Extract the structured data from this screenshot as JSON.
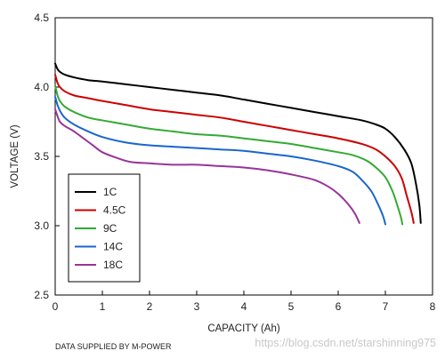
{
  "chart_data": {
    "type": "line",
    "xlabel": "CAPACITY (Ah)",
    "ylabel": "VOLTAGE (V)",
    "xlim": [
      0,
      8
    ],
    "ylim": [
      2.5,
      4.5
    ],
    "xticks": [
      "0",
      "1",
      "2",
      "3",
      "4",
      "5",
      "6",
      "7",
      "8"
    ],
    "yticks": [
      "4.5",
      "4.0",
      "3.5",
      "3.0",
      "2.5"
    ],
    "legend_position": "bottom-left",
    "grid": false,
    "footnote": "DATA SUPPLIED BY M-POWER",
    "watermark": "https://blog.csdn.net/starshinning975",
    "series": [
      {
        "name": "1C",
        "color": "#000000",
        "points": [
          [
            0,
            4.17
          ],
          [
            0.05,
            4.13
          ],
          [
            0.1,
            4.11
          ],
          [
            0.2,
            4.09
          ],
          [
            0.4,
            4.07
          ],
          [
            0.7,
            4.05
          ],
          [
            1.0,
            4.04
          ],
          [
            1.5,
            4.02
          ],
          [
            2.0,
            4.0
          ],
          [
            2.5,
            3.98
          ],
          [
            3.0,
            3.96
          ],
          [
            3.5,
            3.94
          ],
          [
            4.0,
            3.91
          ],
          [
            4.5,
            3.88
          ],
          [
            5.0,
            3.85
          ],
          [
            5.5,
            3.82
          ],
          [
            6.0,
            3.79
          ],
          [
            6.5,
            3.76
          ],
          [
            6.8,
            3.73
          ],
          [
            7.0,
            3.7
          ],
          [
            7.2,
            3.64
          ],
          [
            7.4,
            3.55
          ],
          [
            7.55,
            3.45
          ],
          [
            7.65,
            3.3
          ],
          [
            7.72,
            3.15
          ],
          [
            7.75,
            3.02
          ]
        ]
      },
      {
        "name": "4.5C",
        "color": "#cc0000",
        "points": [
          [
            0,
            4.09
          ],
          [
            0.05,
            4.03
          ],
          [
            0.1,
            4.0
          ],
          [
            0.2,
            3.97
          ],
          [
            0.4,
            3.94
          ],
          [
            0.7,
            3.92
          ],
          [
            1.0,
            3.9
          ],
          [
            1.5,
            3.87
          ],
          [
            2.0,
            3.84
          ],
          [
            2.5,
            3.82
          ],
          [
            3.0,
            3.8
          ],
          [
            3.5,
            3.78
          ],
          [
            4.0,
            3.75
          ],
          [
            4.5,
            3.72
          ],
          [
            5.0,
            3.69
          ],
          [
            5.5,
            3.66
          ],
          [
            6.0,
            3.63
          ],
          [
            6.5,
            3.59
          ],
          [
            6.8,
            3.55
          ],
          [
            7.0,
            3.5
          ],
          [
            7.2,
            3.43
          ],
          [
            7.35,
            3.34
          ],
          [
            7.45,
            3.22
          ],
          [
            7.55,
            3.1
          ],
          [
            7.6,
            3.02
          ]
        ]
      },
      {
        "name": "9C",
        "color": "#33aa33",
        "points": [
          [
            0,
            4.01
          ],
          [
            0.05,
            3.94
          ],
          [
            0.1,
            3.9
          ],
          [
            0.2,
            3.86
          ],
          [
            0.4,
            3.82
          ],
          [
            0.7,
            3.78
          ],
          [
            1.0,
            3.76
          ],
          [
            1.5,
            3.73
          ],
          [
            2.0,
            3.7
          ],
          [
            2.5,
            3.68
          ],
          [
            3.0,
            3.66
          ],
          [
            3.5,
            3.65
          ],
          [
            4.0,
            3.63
          ],
          [
            4.5,
            3.61
          ],
          [
            5.0,
            3.59
          ],
          [
            5.5,
            3.56
          ],
          [
            6.0,
            3.53
          ],
          [
            6.3,
            3.51
          ],
          [
            6.6,
            3.47
          ],
          [
            6.8,
            3.42
          ],
          [
            7.0,
            3.35
          ],
          [
            7.15,
            3.25
          ],
          [
            7.25,
            3.15
          ],
          [
            7.33,
            3.06
          ],
          [
            7.36,
            3.01
          ]
        ]
      },
      {
        "name": "14C",
        "color": "#1a66cc",
        "points": [
          [
            0,
            3.93
          ],
          [
            0.05,
            3.87
          ],
          [
            0.1,
            3.83
          ],
          [
            0.2,
            3.78
          ],
          [
            0.4,
            3.73
          ],
          [
            0.7,
            3.68
          ],
          [
            1.0,
            3.64
          ],
          [
            1.5,
            3.6
          ],
          [
            2.0,
            3.58
          ],
          [
            2.5,
            3.57
          ],
          [
            3.0,
            3.56
          ],
          [
            3.5,
            3.55
          ],
          [
            4.0,
            3.54
          ],
          [
            4.5,
            3.52
          ],
          [
            5.0,
            3.5
          ],
          [
            5.5,
            3.47
          ],
          [
            6.0,
            3.43
          ],
          [
            6.3,
            3.39
          ],
          [
            6.5,
            3.33
          ],
          [
            6.7,
            3.25
          ],
          [
            6.85,
            3.15
          ],
          [
            6.95,
            3.07
          ],
          [
            7.0,
            3.01
          ]
        ]
      },
      {
        "name": "18C",
        "color": "#993399",
        "points": [
          [
            0,
            3.84
          ],
          [
            0.05,
            3.79
          ],
          [
            0.1,
            3.75
          ],
          [
            0.2,
            3.72
          ],
          [
            0.4,
            3.68
          ],
          [
            0.6,
            3.63
          ],
          [
            0.8,
            3.58
          ],
          [
            1.0,
            3.53
          ],
          [
            1.3,
            3.49
          ],
          [
            1.6,
            3.46
          ],
          [
            2.0,
            3.45
          ],
          [
            2.5,
            3.44
          ],
          [
            3.0,
            3.44
          ],
          [
            3.5,
            3.43
          ],
          [
            4.0,
            3.42
          ],
          [
            4.5,
            3.4
          ],
          [
            5.0,
            3.37
          ],
          [
            5.5,
            3.33
          ],
          [
            5.8,
            3.28
          ],
          [
            6.0,
            3.23
          ],
          [
            6.2,
            3.16
          ],
          [
            6.35,
            3.09
          ],
          [
            6.45,
            3.02
          ]
        ]
      }
    ]
  }
}
